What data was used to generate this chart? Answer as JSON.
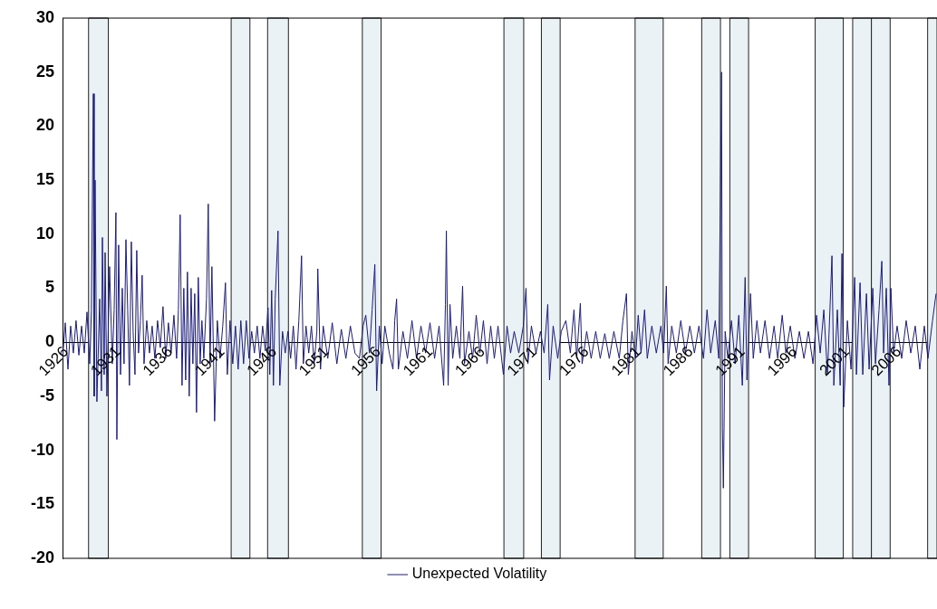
{
  "chart_data": {
    "type": "line",
    "xlim": [
      1926,
      2010
    ],
    "xticks": [
      1926,
      1931,
      1936,
      1941,
      1946,
      1951,
      1956,
      1961,
      1966,
      1971,
      1976,
      1981,
      1986,
      1991,
      1996,
      2001,
      2006
    ],
    "ylim": [
      -20,
      30
    ],
    "yticks": [
      -20,
      -15,
      -10,
      -5,
      0,
      5,
      10,
      15,
      20,
      25,
      30
    ],
    "grid": false,
    "legend": "bottom",
    "marker": "none",
    "line_style": "solid",
    "bands": [
      {
        "axis": "x",
        "from": 1928.5,
        "to": 1930.4,
        "color": "#eaf2f6"
      },
      {
        "axis": "x",
        "from": 1942.2,
        "to": 1944.0,
        "color": "#eaf2f6"
      },
      {
        "axis": "x",
        "from": 1945.7,
        "to": 1947.7,
        "color": "#eaf2f6"
      },
      {
        "axis": "x",
        "from": 1954.8,
        "to": 1956.6,
        "color": "#eaf2f6"
      },
      {
        "axis": "x",
        "from": 1968.4,
        "to": 1970.3,
        "color": "#eaf2f6"
      },
      {
        "axis": "x",
        "from": 1972.0,
        "to": 1973.8,
        "color": "#eaf2f6"
      },
      {
        "axis": "x",
        "from": 1981.0,
        "to": 1983.7,
        "color": "#eaf2f6"
      },
      {
        "axis": "x",
        "from": 1987.4,
        "to": 1989.2,
        "color": "#eaf2f6"
      },
      {
        "axis": "x",
        "from": 1990.1,
        "to": 1991.9,
        "color": "#eaf2f6"
      },
      {
        "axis": "x",
        "from": 1998.3,
        "to": 2001.0,
        "color": "#eaf2f6"
      },
      {
        "axis": "x",
        "from": 2001.9,
        "to": 2003.7,
        "color": "#eaf2f6"
      },
      {
        "axis": "x",
        "from": 2003.7,
        "to": 2005.5,
        "color": "#eaf2f6"
      },
      {
        "axis": "x",
        "from": 2009.1,
        "to": 2010,
        "color": "#eaf2f6"
      }
    ],
    "series": [
      {
        "name": "Unexpected Volatility",
        "color": "#1c1c7c",
        "x": [
          1926.0,
          1926.26,
          1926.52,
          1926.78,
          1927.04,
          1927.3,
          1927.57,
          1927.83,
          1928.09,
          1928.35,
          1928.61,
          1928.78,
          1928.96,
          1929.04,
          1929.13,
          1929.3,
          1929.57,
          1929.74,
          1929.83,
          1930.0,
          1930.09,
          1930.26,
          1930.52,
          1930.78,
          1930.96,
          1931.13,
          1931.22,
          1931.39,
          1931.57,
          1931.74,
          1931.91,
          1932.09,
          1932.26,
          1932.43,
          1932.61,
          1932.78,
          1932.96,
          1933.13,
          1933.3,
          1933.48,
          1933.65,
          1933.83,
          1934.09,
          1934.35,
          1934.61,
          1934.87,
          1935.13,
          1935.39,
          1935.65,
          1935.91,
          1936.17,
          1936.43,
          1936.7,
          1936.96,
          1937.13,
          1937.3,
          1937.48,
          1937.65,
          1937.83,
          1938.0,
          1938.17,
          1938.35,
          1938.52,
          1938.7,
          1938.87,
          1939.04,
          1939.22,
          1939.39,
          1939.57,
          1939.83,
          1940.0,
          1940.17,
          1940.35,
          1940.61,
          1940.87,
          1941.13,
          1941.39,
          1941.65,
          1941.83,
          1942.09,
          1942.35,
          1942.61,
          1942.87,
          1943.13,
          1943.39,
          1943.65,
          1943.91,
          1944.17,
          1944.43,
          1944.7,
          1944.96,
          1945.22,
          1945.48,
          1945.74,
          1945.91,
          1946.09,
          1946.26,
          1946.43,
          1946.7,
          1946.87,
          1947.13,
          1947.39,
          1947.65,
          1947.91,
          1948.17,
          1948.43,
          1948.7,
          1948.96,
          1949.13,
          1949.39,
          1949.65,
          1949.91,
          1950.17,
          1950.43,
          1950.52,
          1950.78,
          1951.04,
          1951.48,
          1951.91,
          1952.35,
          1952.78,
          1953.22,
          1953.65,
          1954.09,
          1954.52,
          1954.87,
          1955.13,
          1955.48,
          1955.74,
          1956.0,
          1956.17,
          1956.43,
          1956.7,
          1956.96,
          1957.39,
          1957.74,
          1957.91,
          1958.09,
          1958.26,
          1958.7,
          1959.13,
          1959.57,
          1960.0,
          1960.43,
          1960.87,
          1961.3,
          1961.74,
          1962.17,
          1962.61,
          1962.78,
          1962.87,
          1963.04,
          1963.22,
          1963.48,
          1963.83,
          1964.17,
          1964.43,
          1964.61,
          1965.04,
          1965.39,
          1965.74,
          1966.09,
          1966.43,
          1966.78,
          1967.13,
          1967.48,
          1967.83,
          1968.35,
          1968.7,
          1969.04,
          1969.39,
          1969.83,
          1970.26,
          1970.52,
          1970.7,
          1971.04,
          1971.48,
          1971.91,
          1972.26,
          1972.61,
          1972.78,
          1973.13,
          1973.57,
          1973.91,
          1974.35,
          1974.78,
          1975.13,
          1975.39,
          1975.74,
          1975.91,
          1976.35,
          1976.78,
          1977.22,
          1977.65,
          1978.09,
          1978.52,
          1978.96,
          1979.48,
          1979.83,
          1980.17,
          1980.35,
          1980.7,
          1981.04,
          1981.3,
          1981.57,
          1981.91,
          1982.17,
          1982.61,
          1983.04,
          1983.48,
          1983.74,
          1984.0,
          1984.17,
          1984.52,
          1984.96,
          1985.39,
          1985.83,
          1986.26,
          1986.7,
          1987.13,
          1987.57,
          1987.91,
          1988.26,
          1988.7,
          1989.04,
          1989.3,
          1989.39,
          1989.48,
          1989.65,
          1989.91,
          1990.26,
          1990.61,
          1990.96,
          1991.3,
          1991.57,
          1991.74,
          1992.09,
          1992.35,
          1992.7,
          1993.04,
          1993.48,
          1993.91,
          1994.35,
          1994.7,
          1995.13,
          1995.48,
          1995.91,
          1996.35,
          1996.78,
          1997.22,
          1997.65,
          1998.09,
          1998.43,
          1998.78,
          1999.13,
          1999.48,
          1999.91,
          2000.09,
          2000.43,
          2000.7,
          2000.87,
          2001.04,
          2001.39,
          2001.74,
          2002.09,
          2002.26,
          2002.61,
          2002.87,
          2003.22,
          2003.48,
          2003.83,
          2004.09,
          2004.43,
          2004.7,
          2004.87,
          2005.13,
          2005.39,
          2005.57,
          2005.83,
          2006.17,
          2006.61,
          2007.04,
          2007.48,
          2007.91,
          2008.35,
          2008.78,
          2009.13,
          2009.57,
          2009.91
        ],
        "values": [
          -1.5,
          1.8,
          -2.5,
          1.5,
          -1,
          2,
          -1.2,
          1.5,
          -1,
          2.8,
          -2,
          3,
          23,
          -5,
          15,
          -5.5,
          4,
          -4.5,
          9.7,
          -3,
          8.3,
          -5,
          7,
          -2,
          3,
          12,
          -9,
          9,
          -3,
          5,
          -2,
          9.5,
          3,
          -4,
          9.3,
          1,
          -3,
          8.5,
          -1,
          2,
          6.2,
          -2,
          2,
          -1,
          1.5,
          -1.5,
          2,
          -0.5,
          3.3,
          -1.5,
          1.8,
          -1,
          2.5,
          -1.5,
          3,
          11.8,
          -4,
          5,
          -3.5,
          6.5,
          -5,
          5,
          -2,
          4.5,
          -6.5,
          6,
          -2,
          2,
          -1.5,
          4,
          12.8,
          -2,
          7,
          -7.3,
          2,
          -1.5,
          1.5,
          5.5,
          -3,
          2,
          -2,
          1.5,
          -2.5,
          2,
          -2,
          2,
          -1.5,
          1,
          -1,
          1.5,
          -1.5,
          1.5,
          -0.8,
          3.2,
          -3,
          4.8,
          -4,
          4,
          10.3,
          -4,
          1,
          -1,
          1,
          -1.5,
          1.5,
          -2.5,
          2,
          8,
          -2,
          1.5,
          -1,
          1.5,
          -2,
          1,
          6.8,
          -2.5,
          1.5,
          -1.5,
          1.8,
          -2,
          1.2,
          -1.5,
          1.5,
          -1,
          -1.5,
          1.5,
          2.5,
          -1,
          3,
          7.2,
          -4.5,
          1.5,
          -2,
          1.5,
          -1,
          -2.5,
          2,
          4,
          -2.5,
          1,
          -1.5,
          2,
          -1.5,
          1.5,
          -1,
          1.8,
          -1.5,
          1.5,
          -4,
          3.5,
          10.3,
          -4,
          3.5,
          -1.5,
          1.5,
          -1.5,
          5.2,
          -2,
          1,
          -1.5,
          2.5,
          -1,
          2,
          -2,
          1.5,
          -1.5,
          1.5,
          -3,
          1.5,
          -1,
          1,
          -1,
          1.5,
          5,
          -2,
          1.5,
          -1,
          1,
          -1,
          3.5,
          -3.5,
          1.5,
          -1.5,
          1,
          2,
          -1,
          3,
          -1.5,
          3.6,
          -2,
          1,
          -1.5,
          1,
          -1.5,
          0.8,
          -1.5,
          1,
          -1.5,
          2,
          4.5,
          -3,
          1,
          -1.5,
          2.5,
          -1,
          3,
          -1.5,
          1.5,
          -1,
          1.5,
          -1,
          5.2,
          -2,
          1.5,
          -1,
          2,
          -1,
          1.5,
          -1,
          1.5,
          -1.5,
          3,
          -1,
          2,
          -1.5,
          25,
          -8,
          -13.5,
          1,
          -1.5,
          2,
          -2,
          2.5,
          -4,
          6,
          -3.5,
          4.5,
          -1.5,
          2,
          -1,
          2,
          -1.5,
          1.5,
          -1.5,
          2.5,
          -1,
          1.5,
          -1.5,
          1,
          -1.5,
          1,
          -2,
          2.5,
          -1,
          3,
          -3,
          8,
          -4,
          3,
          -4,
          8.2,
          -6,
          2,
          -2.5,
          6,
          -3,
          5.5,
          -3,
          4.5,
          -2.5,
          5,
          -2,
          3,
          7.5,
          -1,
          5,
          -4,
          5,
          -1,
          1.5,
          -1.5,
          2,
          -1,
          1.5,
          -2.5,
          1.5,
          -1.5,
          2,
          4.5
        ]
      }
    ]
  }
}
